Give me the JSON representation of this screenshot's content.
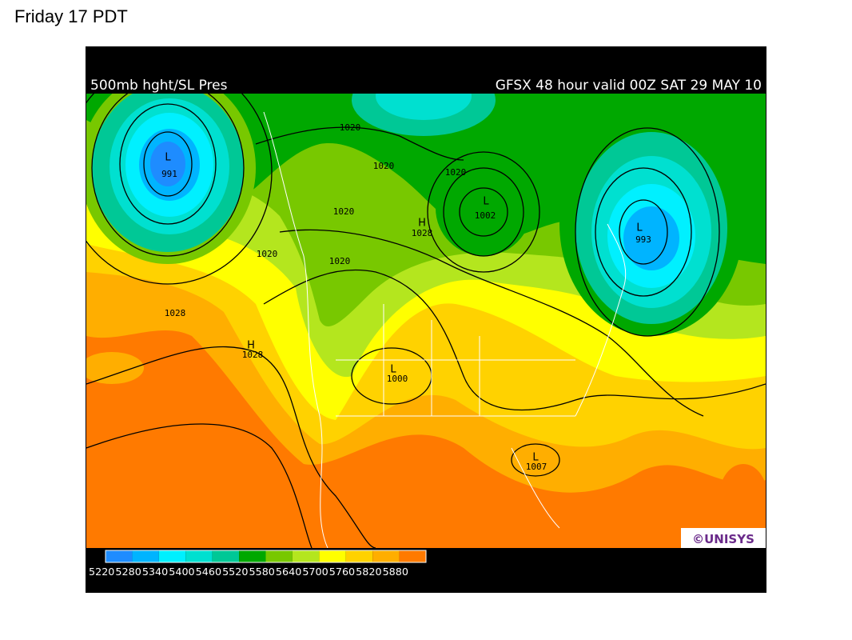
{
  "caption": "Friday 17 PDT",
  "map": {
    "title": "500mb hght/SL Pres",
    "subtitle": "GFSX 48 hour valid 00Z SAT 29 MAY 10",
    "credit": "©UNISYS",
    "pressure_labels": [
      "991",
      "1020",
      "1020",
      "1020",
      "1020",
      "1020",
      "1020",
      "1028",
      "1028",
      "1002",
      "993",
      "1028",
      "1000",
      "1007"
    ],
    "markers": [
      "L",
      "L",
      "H",
      "L",
      "H",
      "L",
      "L"
    ],
    "legend": {
      "levels": [
        5220,
        5280,
        5340,
        5400,
        5460,
        5520,
        5580,
        5640,
        5700,
        5760,
        5820,
        5880
      ],
      "colors": [
        "#1e8cff",
        "#00b4ff",
        "#00f0ff",
        "#00e0d0",
        "#00c896",
        "#00a800",
        "#78c800",
        "#b4e61e",
        "#ffff00",
        "#ffd200",
        "#ffae00",
        "#ff7a00"
      ]
    }
  }
}
